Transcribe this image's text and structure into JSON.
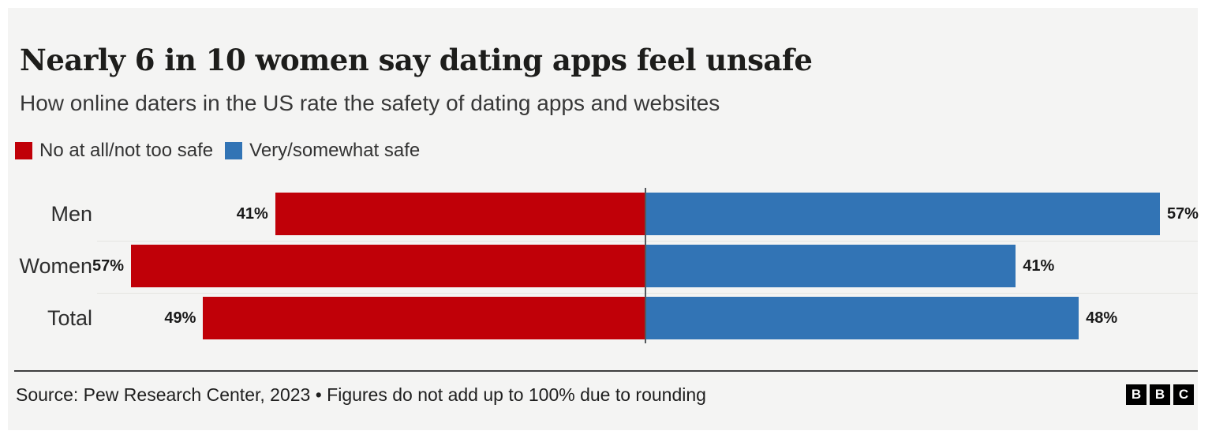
{
  "page": {
    "background": "#ffffff",
    "card_background": "#f4f4f3"
  },
  "header": {
    "title": "Nearly 6 in 10 women say dating apps feel unsafe",
    "subtitle": "How online daters in the US rate the safety of dating apps and websites"
  },
  "chart_data": {
    "type": "bar",
    "variant": "diverging-horizontal",
    "title": "Nearly 6 in 10 women say dating apps feel unsafe",
    "subtitle": "How online daters in the US rate the safety of dating apps and websites",
    "categories": [
      "Men",
      "Women",
      "Total"
    ],
    "series": [
      {
        "name": "No at all/not too safe",
        "color": "#c00008",
        "direction": "left",
        "values": [
          41,
          57,
          49
        ]
      },
      {
        "name": "Very/somewhat safe",
        "color": "#3274b5",
        "direction": "right",
        "values": [
          57,
          41,
          48
        ]
      }
    ],
    "value_suffix": "%",
    "legend_position": "top",
    "grid": "off",
    "center_axis": true,
    "axis_note": "bars diverge from a shared center baseline"
  },
  "footer": {
    "source": "Source: Pew Research Center, 2023 • Figures do not add up to 100% due to rounding",
    "logo_letters": [
      "B",
      "B",
      "C"
    ]
  }
}
